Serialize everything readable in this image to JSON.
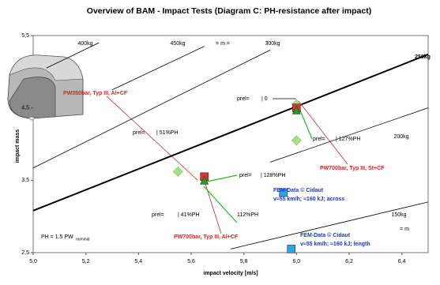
{
  "chart_data": {
    "type": "scatter",
    "title": "Overview of BAM - Impact Tests (Diagram C: PH-resistance after impact)",
    "x_label": "impact velocity [m/s]",
    "y_label": "impact mass",
    "xlim": [
      5.0,
      6.5
    ],
    "ylim": [
      2.5,
      5.5
    ],
    "xticks": [
      {
        "value": 5.0,
        "label": "5,0"
      },
      {
        "value": 5.2,
        "label": "5,2"
      },
      {
        "value": 5.4,
        "label": "5,4"
      },
      {
        "value": 5.6,
        "label": "5,6"
      },
      {
        "value": 5.8,
        "label": "5,8"
      },
      {
        "value": 6.0,
        "label": "6,0"
      },
      {
        "value": 6.2,
        "label": "6,2"
      },
      {
        "value": 6.4,
        "label": "6,4"
      }
    ],
    "yticks": [
      {
        "value": 2.5,
        "label": "2,5"
      },
      {
        "value": 3.5,
        "label": "3,5"
      },
      {
        "value": 4.5,
        "label": "4,5"
      },
      {
        "value": 5.5,
        "label": "5,5"
      }
    ],
    "iso_lines": [
      {
        "label": "250kg",
        "x": [
          5.0,
          6.5
        ],
        "y": [
          3.08,
          5.24
        ],
        "width": 2
      },
      {
        "label": "200kg",
        "x": [
          5.9,
          6.5
        ],
        "y": [
          3.75,
          4.5
        ],
        "width": 0.8
      },
      {
        "label": "150kg",
        "x": [
          5.75,
          6.5
        ],
        "y": [
          2.55,
          3.2
        ],
        "width": 0.8
      },
      {
        "label": "300kg",
        "x": [
          5.0,
          5.9
        ],
        "y": [
          3.67,
          5.3
        ],
        "width": 0.8
      },
      {
        "label": "450kg",
        "x": [
          5.3,
          5.65
        ],
        "y": [
          4.75,
          5.35
        ],
        "width": 0.8
      },
      {
        "label": "400kg",
        "x": [
          5.05,
          5.25
        ],
        "y": [
          5.05,
          5.4
        ],
        "width": 0.8
      }
    ],
    "series": [
      {
        "marker": "diamond",
        "color": "#a8e08a",
        "x": [
          6.0,
          6.0,
          5.55
        ],
        "y": [
          4.55,
          4.05,
          3.62
        ]
      },
      {
        "marker": "square",
        "color": "#e03030",
        "x": [
          5.65,
          6.0
        ],
        "y": [
          3.55,
          4.5
        ]
      },
      {
        "marker": "triangle",
        "color": "#20a020",
        "x": [
          5.65,
          6.0
        ],
        "y": [
          3.5,
          4.47
        ]
      },
      {
        "marker": "square",
        "color": "#2aa6e8",
        "x": [
          5.95,
          5.98
        ],
        "y": [
          3.33,
          2.55
        ]
      }
    ],
    "annotations": [
      {
        "text": "PW350bar, Typ III, Al+CF",
        "color": "#e02020"
      },
      {
        "text": "prel=",
        "color": "#000"
      },
      {
        "text": "| 0",
        "color": "#000"
      },
      {
        "text": "prel=",
        "color": "#000"
      },
      {
        "text": "| 51%PH",
        "color": "#000"
      },
      {
        "text": "prel=",
        "color": "#000"
      },
      {
        "text": "| 127%PH",
        "color": "#000"
      },
      {
        "text": "prel=",
        "color": "#000"
      },
      {
        "text": "| 128%PH",
        "color": "#000"
      },
      {
        "text": "PW700bar, Typ III, St+CF",
        "color": "#e02020"
      },
      {
        "text": "FEM-Data © Cidaut",
        "color": "#1a3ad0"
      },
      {
        "text": "v≈55 km/h; ≈160 kJ; across",
        "color": "#1a3ad0"
      },
      {
        "text": "prel=",
        "color": "#000"
      },
      {
        "text": "| 41%PH",
        "color": "#000"
      },
      {
        "text": "112%PH",
        "color": "#000"
      },
      {
        "text": "PW700bar, Typ III, Al+CF",
        "color": "#e02020"
      },
      {
        "text": "FEM-Data © Cidaut",
        "color": "#1a3ad0"
      },
      {
        "text": "v≈55 km/h; ≈160 kJ; length",
        "color": "#1a3ad0"
      },
      {
        "text": "PH = 1.5 PW",
        "color": "#000"
      },
      {
        "text": "nominal",
        "color": "#000"
      },
      {
        "text": "= m =",
        "color": "#000"
      },
      {
        "text": "= m",
        "color": "#000"
      }
    ]
  }
}
